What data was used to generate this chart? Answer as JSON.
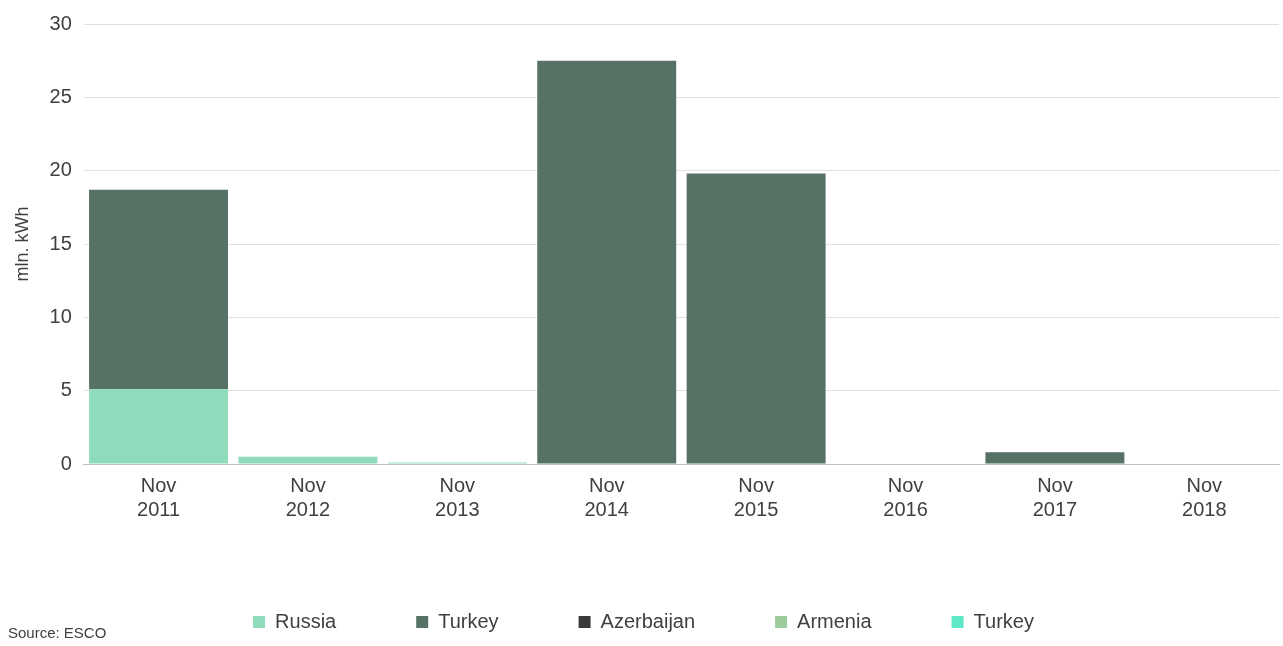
{
  "chart_data": {
    "type": "bar",
    "stacked": true,
    "ylabel": "mln. kWh",
    "categories": [
      "Nov 2011",
      "Nov 2012",
      "Nov 2013",
      "Nov 2014",
      "Nov 2015",
      "Nov 2016",
      "Nov 2017",
      "Nov 2018"
    ],
    "series": [
      {
        "name": "Russia",
        "color": "#8fdcbc",
        "values": [
          5.1,
          0.5,
          0.1,
          0,
          0,
          0,
          0,
          0
        ]
      },
      {
        "name": "Turkey",
        "color": "#557264",
        "values": [
          13.6,
          0,
          0,
          27.5,
          19.8,
          0,
          0.8,
          0
        ]
      },
      {
        "name": "Azerbaijan",
        "color": "#3a3a3a",
        "values": [
          0,
          0,
          0,
          0,
          0,
          0,
          0,
          0
        ]
      },
      {
        "name": "Armenia",
        "color": "#9ccc9c",
        "values": [
          0,
          0,
          0,
          0,
          0,
          0,
          0,
          0
        ]
      },
      {
        "name": "Turkey",
        "color": "#5ee8c8",
        "values": [
          0,
          0,
          0,
          0,
          0,
          0,
          0,
          0
        ]
      }
    ],
    "ylim": [
      0,
      30
    ],
    "yticks": [
      0,
      5,
      10,
      15,
      20,
      25,
      30
    ],
    "grid": "y",
    "legend": "bottom",
    "annotations": [
      "Source: ESCO"
    ]
  }
}
